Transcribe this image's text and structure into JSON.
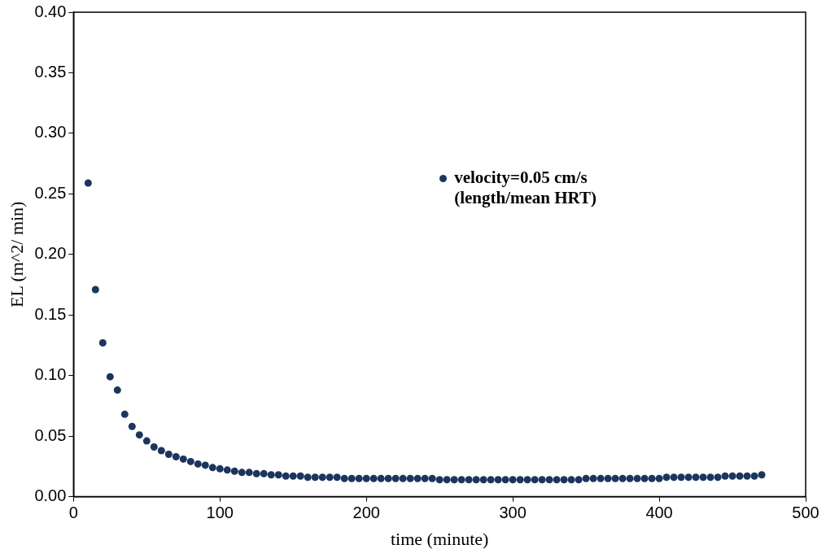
{
  "chart_data": {
    "type": "scatter",
    "xlabel": "time (minute)",
    "ylabel": "EL (m^2/ min)",
    "xlim": [
      0,
      500
    ],
    "xticks": [
      0,
      100,
      200,
      300,
      400,
      500
    ],
    "ylim": [
      0,
      0.4
    ],
    "yticks": [
      {
        "value": 0,
        "label": "0.00"
      },
      {
        "value": 0.05,
        "label": "0.05"
      },
      {
        "value": 0.1,
        "label": "0.10"
      },
      {
        "value": 0.15,
        "label": "0.15"
      },
      {
        "value": 0.2,
        "label": "0.20"
      },
      {
        "value": 0.25,
        "label": "0.25"
      },
      {
        "value": 0.3,
        "label": "0.30"
      },
      {
        "value": 0.35,
        "label": "0.35"
      },
      {
        "value": 0.4,
        "label": "0.40"
      }
    ],
    "grid": false,
    "legend": "right",
    "marker": "circle",
    "x": [
      10,
      15,
      20,
      25,
      30,
      35,
      40,
      45,
      50,
      55,
      60,
      65,
      70,
      75,
      80,
      85,
      90,
      95,
      100,
      105,
      110,
      115,
      120,
      125,
      130,
      135,
      140,
      145,
      150,
      155,
      160,
      165,
      170,
      175,
      180,
      185,
      190,
      195,
      200,
      205,
      210,
      215,
      220,
      225,
      230,
      235,
      240,
      245,
      250,
      255,
      260,
      265,
      270,
      275,
      280,
      285,
      290,
      295,
      300,
      305,
      310,
      315,
      320,
      325,
      330,
      335,
      340,
      345,
      350,
      355,
      360,
      365,
      370,
      375,
      380,
      385,
      390,
      395,
      400,
      405,
      410,
      415,
      420,
      425,
      430,
      435,
      440,
      445,
      450,
      455,
      460,
      465,
      470
    ],
    "series": [
      {
        "name": "velocity=0.05 cm/s (length/mean HRT)",
        "color": "#1b365d",
        "values": [
          0.259,
          0.171,
          0.127,
          0.099,
          0.088,
          0.068,
          0.058,
          0.051,
          0.046,
          0.041,
          0.038,
          0.035,
          0.033,
          0.031,
          0.029,
          0.027,
          0.026,
          0.024,
          0.023,
          0.022,
          0.021,
          0.02,
          0.02,
          0.019,
          0.019,
          0.018,
          0.018,
          0.017,
          0.017,
          0.017,
          0.016,
          0.016,
          0.016,
          0.016,
          0.016,
          0.015,
          0.015,
          0.015,
          0.015,
          0.015,
          0.015,
          0.015,
          0.015,
          0.015,
          0.015,
          0.015,
          0.015,
          0.015,
          0.014,
          0.014,
          0.014,
          0.014,
          0.014,
          0.014,
          0.014,
          0.014,
          0.014,
          0.014,
          0.014,
          0.014,
          0.014,
          0.014,
          0.014,
          0.014,
          0.014,
          0.014,
          0.014,
          0.014,
          0.015,
          0.015,
          0.015,
          0.015,
          0.015,
          0.015,
          0.015,
          0.015,
          0.015,
          0.015,
          0.015,
          0.016,
          0.016,
          0.016,
          0.016,
          0.016,
          0.016,
          0.016,
          0.016,
          0.017,
          0.017,
          0.017,
          0.017,
          0.017,
          0.018
        ]
      }
    ]
  }
}
